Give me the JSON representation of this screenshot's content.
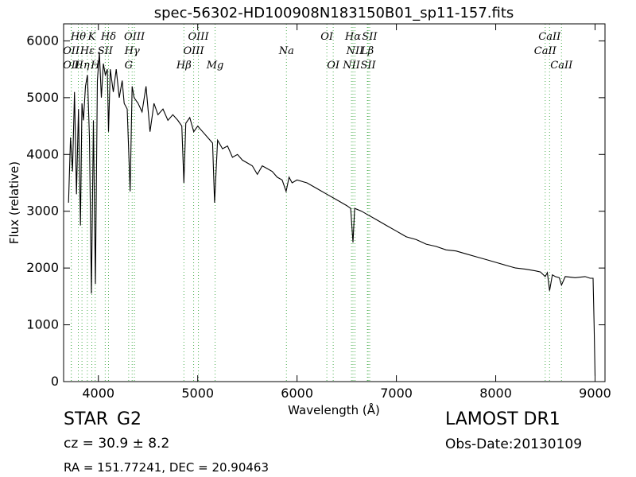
{
  "chart_data": {
    "type": "line",
    "title": "spec-56302-HD100908N183150B01_sp11-157.fits",
    "xlabel": "Wavelength (Å)",
    "ylabel": "Flux (relative)",
    "xlim": [
      3650,
      9100
    ],
    "ylim": [
      0,
      6300
    ],
    "x_ticks": [
      4000,
      5000,
      6000,
      7000,
      8000,
      9000
    ],
    "y_ticks": [
      0,
      1000,
      2000,
      3000,
      4000,
      5000,
      6000
    ],
    "grid": false,
    "series": [
      {
        "color": "#000000",
        "x": [
          3700,
          3720,
          3740,
          3760,
          3780,
          3800,
          3820,
          3835,
          3850,
          3870,
          3890,
          3910,
          3930,
          3950,
          3970,
          3990,
          4010,
          4030,
          4050,
          4070,
          4090,
          4102,
          4120,
          4150,
          4180,
          4210,
          4240,
          4260,
          4290,
          4320,
          4340,
          4360,
          4400,
          4440,
          4480,
          4520,
          4560,
          4600,
          4650,
          4700,
          4750,
          4800,
          4840,
          4861,
          4880,
          4920,
          4960,
          5000,
          5050,
          5100,
          5150,
          5170,
          5200,
          5250,
          5300,
          5350,
          5400,
          5450,
          5500,
          5550,
          5600,
          5650,
          5700,
          5750,
          5800,
          5850,
          5890,
          5920,
          5950,
          6000,
          6100,
          6200,
          6300,
          6400,
          6500,
          6540,
          6563,
          6580,
          6650,
          6700,
          6800,
          6900,
          7000,
          7100,
          7200,
          7300,
          7400,
          7500,
          7600,
          7700,
          7800,
          7900,
          8000,
          8100,
          8200,
          8300,
          8400,
          8450,
          8498,
          8520,
          8542,
          8570,
          8600,
          8640,
          8662,
          8700,
          8800,
          8900,
          8950,
          8980,
          8990,
          9000
        ],
        "values": [
          3150,
          4300,
          3700,
          5100,
          3300,
          4800,
          2750,
          4900,
          4600,
          5200,
          5400,
          4300,
          1550,
          4600,
          1720,
          5300,
          5800,
          5000,
          5600,
          5400,
          5500,
          4400,
          5500,
          5100,
          5500,
          5000,
          5300,
          4900,
          4800,
          3350,
          5200,
          5000,
          4900,
          4750,
          5200,
          4400,
          4900,
          4700,
          4800,
          4600,
          4700,
          4600,
          4500,
          3500,
          4550,
          4650,
          4400,
          4500,
          4400,
          4300,
          4200,
          3150,
          4250,
          4100,
          4150,
          3950,
          4000,
          3900,
          3850,
          3800,
          3650,
          3800,
          3750,
          3700,
          3600,
          3550,
          3350,
          3600,
          3500,
          3550,
          3500,
          3400,
          3300,
          3200,
          3100,
          3050,
          2450,
          3050,
          3000,
          2950,
          2850,
          2750,
          2650,
          2550,
          2500,
          2420,
          2380,
          2320,
          2300,
          2250,
          2200,
          2150,
          2100,
          2050,
          2000,
          1980,
          1950,
          1930,
          1850,
          1920,
          1600,
          1880,
          1850,
          1830,
          1700,
          1850,
          1830,
          1850,
          1820,
          1820,
          1000,
          100
        ]
      }
    ],
    "annotations": [
      {
        "label": "Hθ",
        "x": 3798,
        "row": 1
      },
      {
        "label": "OII",
        "x": 3727,
        "row": 2
      },
      {
        "label": "OII",
        "x": 3727,
        "row": 3
      },
      {
        "label": "Hη",
        "x": 3835,
        "row": 3
      },
      {
        "label": "K",
        "x": 3934,
        "row": 1
      },
      {
        "label": "Hε",
        "x": 3889,
        "row": 2
      },
      {
        "label": "SII",
        "x": 4069,
        "row": 2
      },
      {
        "label": "H",
        "x": 3968,
        "row": 3
      },
      {
        "label": "Hδ",
        "x": 4102,
        "row": 1
      },
      {
        "label": "OIII",
        "x": 4363,
        "row": 1
      },
      {
        "label": "Hγ",
        "x": 4340,
        "row": 2
      },
      {
        "label": "G",
        "x": 4305,
        "row": 3
      },
      {
        "label": "OIII",
        "x": 5007,
        "row": 1
      },
      {
        "label": "OIII",
        "x": 4959,
        "row": 2
      },
      {
        "label": "Hβ",
        "x": 4861,
        "row": 3
      },
      {
        "label": "Mg",
        "x": 5175,
        "row": 3
      },
      {
        "label": "Na",
        "x": 5893,
        "row": 2
      },
      {
        "label": "OI",
        "x": 6300,
        "row": 1
      },
      {
        "label": "OI",
        "x": 6364,
        "row": 3
      },
      {
        "label": "Hα",
        "x": 6563,
        "row": 1
      },
      {
        "label": "SII",
        "x": 6731,
        "row": 1
      },
      {
        "label": "NII",
        "x": 6583,
        "row": 2
      },
      {
        "label": "Lβ",
        "x": 6708,
        "row": 2
      },
      {
        "label": "NII",
        "x": 6548,
        "row": 3
      },
      {
        "label": "SII",
        "x": 6716,
        "row": 3
      },
      {
        "label": "CaII",
        "x": 8542,
        "row": 1
      },
      {
        "label": "CaII",
        "x": 8498,
        "row": 2
      },
      {
        "label": "CaII",
        "x": 8662,
        "row": 3
      }
    ]
  },
  "footer": {
    "object_class": "STAR",
    "subclass": "G2",
    "redshift": "cz = 30.9  ± 8.2",
    "coords": "RA = 151.77241, DEC = 20.90463",
    "survey": "LAMOST DR1",
    "obs_date": "Obs-Date:20130109"
  }
}
